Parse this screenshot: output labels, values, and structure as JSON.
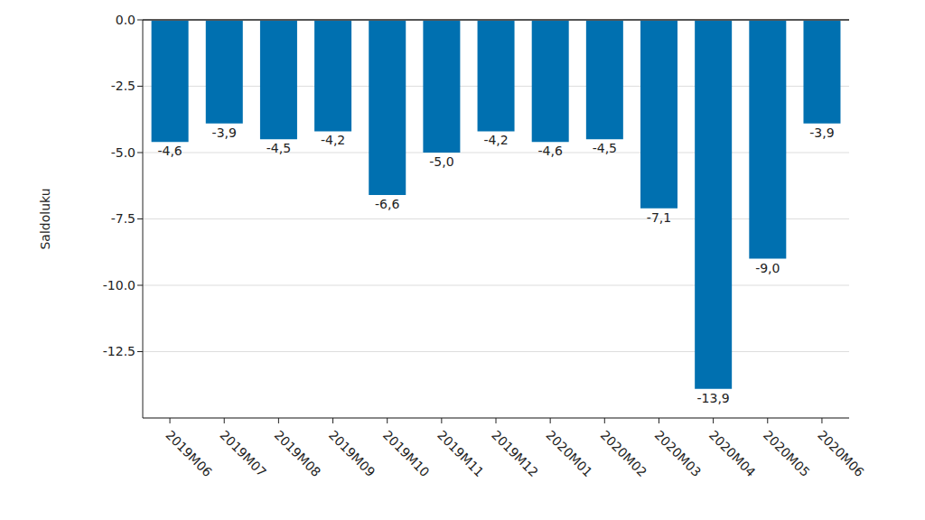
{
  "chart_data": {
    "type": "bar",
    "y_label": "Saldoluku",
    "categories": [
      "2019M06",
      "2019M07",
      "2019M08",
      "2019M09",
      "2019M10",
      "2019M11",
      "2019M12",
      "2020M01",
      "2020M02",
      "2020M03",
      "2020M04",
      "2020M05",
      "2020M06"
    ],
    "values": [
      -4.6,
      -3.9,
      -4.5,
      -4.2,
      -6.6,
      -5.0,
      -4.2,
      -4.6,
      -4.5,
      -7.1,
      -13.9,
      -9.0,
      -3.9
    ],
    "value_labels": [
      "-4,6",
      "-3,9",
      "-4,5",
      "-4,2",
      "-6,6",
      "-5,0",
      "-4,2",
      "-4,6",
      "-4,5",
      "-7,1",
      "-13,9",
      "-9,0",
      "-3,9"
    ],
    "color": "#0070b0",
    "ylim": [
      -15,
      0
    ],
    "yticks": [
      {
        "value": 0,
        "label": "0.0"
      },
      -2.5,
      {
        "value": -5,
        "label": "-5.0"
      },
      {
        "value": -7.5,
        "label": "-7.5"
      },
      {
        "value": -10,
        "label": "-10.0"
      },
      -12.5
    ],
    "grid": true,
    "data_labels": true
  }
}
